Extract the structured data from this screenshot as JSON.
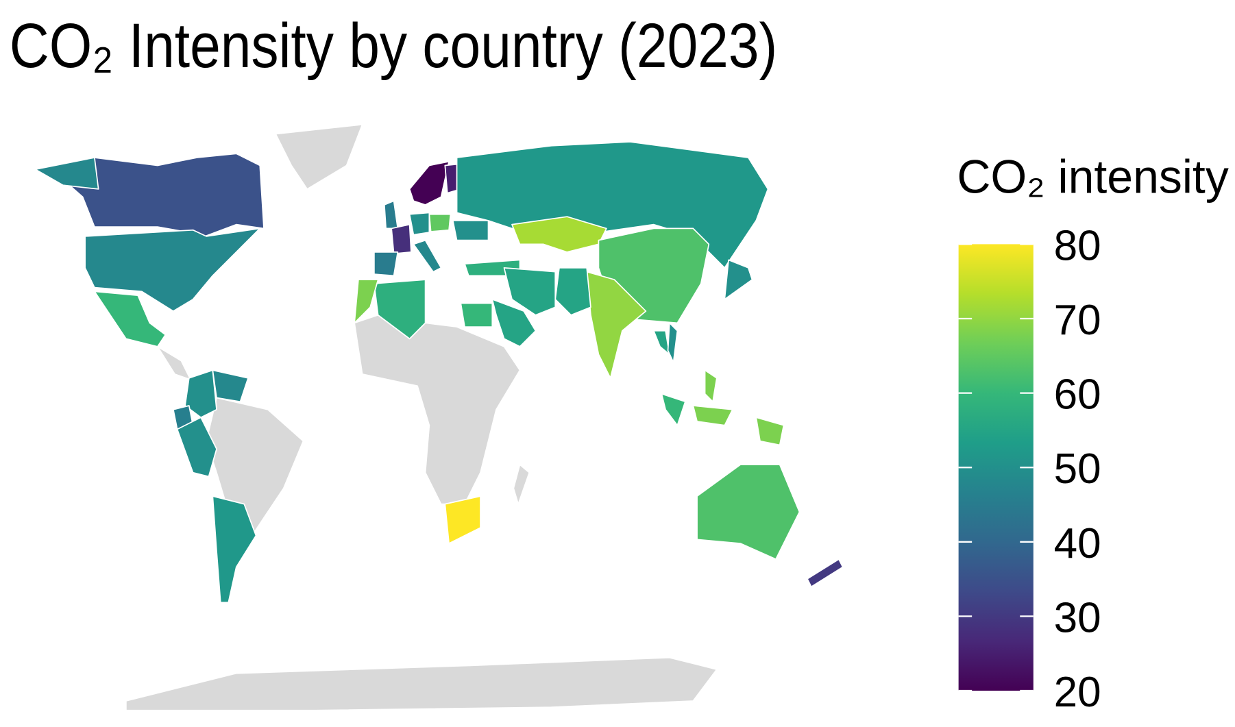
{
  "chart_data": {
    "type": "choropleth",
    "title": "CO₂ Intensity by country (2023)",
    "legend_title": "CO₂ intensity",
    "values": [
      35,
      48,
      60,
      50,
      48,
      46,
      50,
      52,
      45,
      20,
      25,
      28,
      45,
      50,
      65,
      48,
      50,
      58,
      52,
      72,
      63,
      70,
      55,
      55,
      55,
      60,
      58,
      68,
      80,
      55,
      50,
      60,
      68,
      68,
      50,
      68,
      63,
      30
    ],
    "missing_color": "#d9d9d9",
    "colorbar": {
      "lim": [
        20,
        80
      ],
      "ticks": [
        20,
        30,
        40,
        50,
        60,
        70,
        80
      ],
      "colors": [
        "#440154",
        "#482878",
        "#3e4a89",
        "#31688e",
        "#26828e",
        "#1f9e89",
        "#35b779",
        "#6ece58",
        "#b5de2b",
        "#fde725"
      ]
    }
  }
}
